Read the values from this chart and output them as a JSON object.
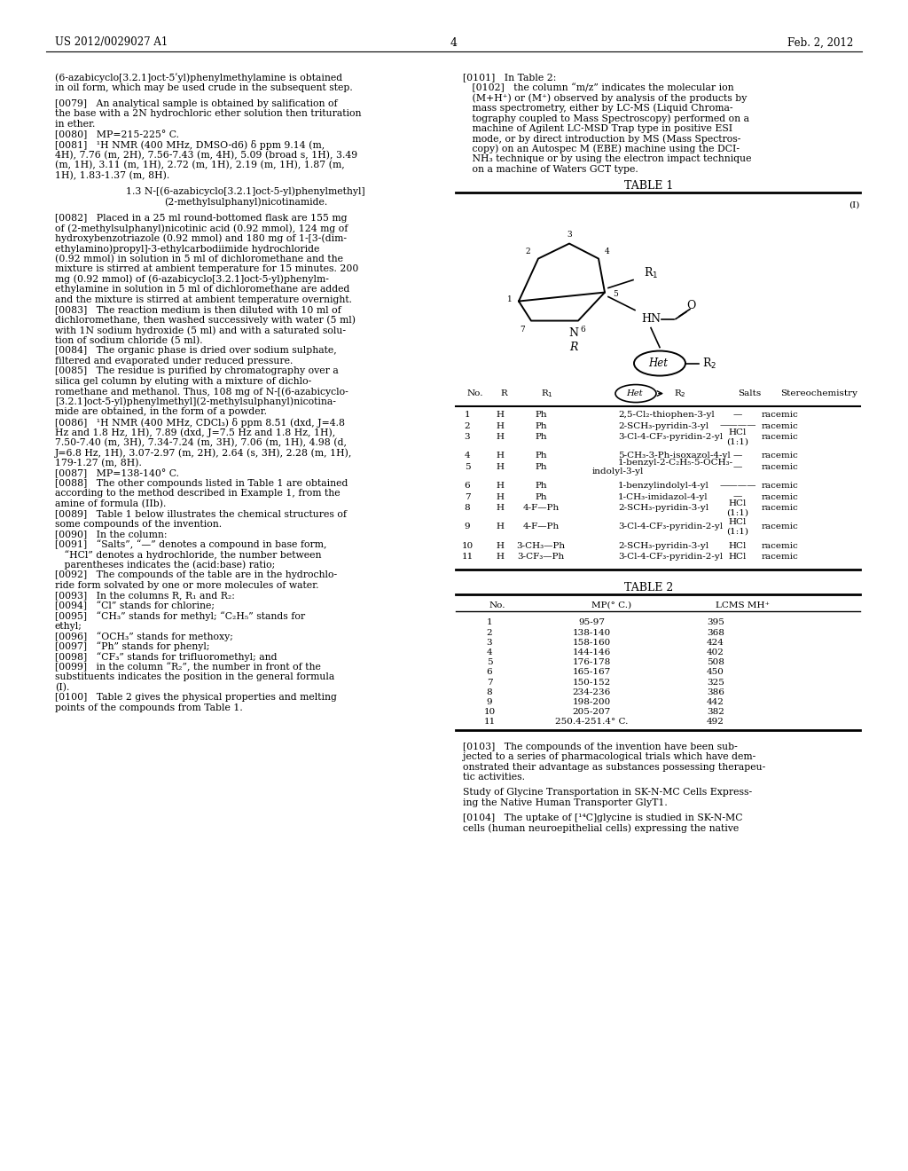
{
  "header_left": "US 2012/0029027 A1",
  "header_right": "Feb. 2, 2012",
  "page_number": "4",
  "left_texts": [
    "(6-azabicyclo[3.2.1]oct-5ʹyl)phenylmethylamine is obtained",
    "in oil form, which may be used crude in the subsequent step.",
    "",
    "[0079]   An analytical sample is obtained by salification of",
    "the base with a 2N hydrochloric ether solution then trituration",
    "in ether.",
    "[0080]   MP=215-225° C.",
    "[0081]   ¹H NMR (400 MHz, DMSO-d6) δ ppm 9.14 (m,",
    "4H), 7.76 (m, 2H), 7.56-7.43 (m, 4H), 5.09 (broad s, 1H), 3.49",
    "(m, 1H), 3.11 (m, 1H), 2.72 (m, 1H), 2.19 (m, 1H), 1.87 (m,",
    "1H), 1.83-1.37 (m, 8H).",
    "",
    "1.3 N-[(6-azabicyclo[3.2.1]oct-5-yl)phenylmethyl]",
    "(2-methylsulphanyl)nicotinamide.",
    "",
    "[0082]   Placed in a 25 ml round-bottomed flask are 155 mg",
    "of (2-methylsulphanyl)nicotinic acid (0.92 mmol), 124 mg of",
    "hydroxybenzotriazole (0.92 mmol) and 180 mg of 1-[3-(dim-",
    "ethylamino)propyl]-3-ethylcarbodiimide hydrochloride",
    "(0.92 mmol) in solution in 5 ml of dichloromethane and the",
    "mixture is stirred at ambient temperature for 15 minutes. 200",
    "mg (0.92 mmol) of (6-azabicyclo[3.2.1]oct-5-yl)phenylm-",
    "ethylamine in solution in 5 ml of dichloromethane are added",
    "and the mixture is stirred at ambient temperature overnight.",
    "[0083]   The reaction medium is then diluted with 10 ml of",
    "dichloromethane, then washed successively with water (5 ml)",
    "with 1N sodium hydroxide (5 ml) and with a saturated solu-",
    "tion of sodium chloride (5 ml).",
    "[0084]   The organic phase is dried over sodium sulphate,",
    "filtered and evaporated under reduced pressure.",
    "[0085]   The residue is purified by chromatography over a",
    "silica gel column by eluting with a mixture of dichlo-",
    "romethane and methanol. Thus, 108 mg of N-[(6-azabicyclo-",
    "[3.2.1]oct-5-yl)phenylmethyl](2-methylsulphanyl)nicotina-",
    "mide are obtained, in the form of a powder.",
    "[0086]   ¹H NMR (400 MHz, CDCl₃) δ ppm 8.51 (dxd, J=4.8",
    "Hz and 1.8 Hz, 1H), 7.89 (dxd, J=7.5 Hz and 1.8 Hz, 1H),",
    "7.50-7.40 (m, 3H), 7.34-7.24 (m, 3H), 7.06 (m, 1H), 4.98 (d,",
    "J=6.8 Hz, 1H), 3.07-2.97 (m, 2H), 2.64 (s, 3H), 2.28 (m, 1H),",
    "179-1.27 (m, 8H).",
    "[0087]   MP=138-140° C.",
    "[0088]   The other compounds listed in Table 1 are obtained",
    "according to the method described in Example 1, from the",
    "amine of formula (IIb).",
    "[0089]   Table 1 below illustrates the chemical structures of",
    "some compounds of the invention.",
    "[0090]   In the column:",
    "[0091]   “Salts”, “—” denotes a compound in base form,",
    "   “HCl” denotes a hydrochloride, the number between",
    "   parentheses indicates the (acid:base) ratio;",
    "[0092]   The compounds of the table are in the hydrochlo-",
    "ride form solvated by one or more molecules of water.",
    "[0093]   In the columns R, R₁ and R₂:",
    "[0094]   “Cl” stands for chlorine;",
    "[0095]   “CH₃” stands for methyl; “C₂H₅” stands for",
    "ethyl;",
    "[0096]   “OCH₃” stands for methoxy;",
    "[0097]   “Ph” stands for phenyl;",
    "[0098]   “CF₃” stands for trifluoromethyl; and",
    "[0099]   in the column “R₂”, the number in front of the",
    "substituents indicates the position in the general formula",
    "(I).",
    "[0100]   Table 2 gives the physical properties and melting",
    "points of the compounds from Table 1."
  ],
  "right_texts_top": [
    "[0101]   In Table 2:",
    "   [0102]   the column “m/z” indicates the molecular ion",
    "   (M+H⁺) or (M⁺) observed by analysis of the products by",
    "   mass spectrometry, either by LC-MS (Liquid Chroma-",
    "   tography coupled to Mass Spectroscopy) performed on a",
    "   machine of Agilent LC-MSD Trap type in positive ESI",
    "   mode, or by direct introduction by MS (Mass Spectros-",
    "   copy) on an Autospec M (EBE) machine using the DCI-",
    "   NH₃ technique or by using the electron impact technique",
    "   on a machine of Waters GCT type."
  ],
  "table1_rows": [
    [
      "1",
      "H",
      "Ph",
      "2,5-Cl₂-thiophen-3-yl",
      "—",
      "racemic"
    ],
    [
      "2",
      "H",
      "Ph",
      "2-SCH₃-pyridin-3-yl",
      "————",
      "racemic"
    ],
    [
      "3",
      "H",
      "Ph",
      "3-Cl-4-CF₃-pyridin-2-yl",
      "HCl\n(1:1)",
      "racemic"
    ],
    [
      "4",
      "H",
      "Ph",
      "5-CH₃-3-Ph-isoxazol-4-yl",
      "—",
      "racemic"
    ],
    [
      "5",
      "H",
      "Ph",
      "1-benzyl-2-C₂H₅-5-OCH₃-\nindolyl-3-yl",
      "—",
      "racemic"
    ],
    [
      "6",
      "H",
      "Ph",
      "1-benzylindolyl-4-yl",
      "————",
      "racemic"
    ],
    [
      "7",
      "H",
      "Ph",
      "1-CH₃-imidazol-4-yl",
      "—",
      "racemic"
    ],
    [
      "8",
      "H",
      "4-F—Ph",
      "2-SCH₃-pyridin-3-yl",
      "HCl\n(1:1)",
      "racemic"
    ],
    [
      "9",
      "H",
      "4-F—Ph",
      "3-Cl-4-CF₃-pyridin-2-yl",
      "HCl\n(1:1)",
      "racemic"
    ],
    [
      "10",
      "H",
      "3-CH₃—Ph",
      "2-SCH₃-pyridin-3-yl",
      "HCl",
      "racemic"
    ],
    [
      "11",
      "H",
      "3-CF₃—Ph",
      "3-Cl-4-CF₃-pyridin-2-yl",
      "HCl",
      "racemic"
    ]
  ],
  "table2_rows": [
    [
      "1",
      "95-97",
      "395"
    ],
    [
      "2",
      "138-140",
      "368"
    ],
    [
      "3",
      "158-160",
      "424"
    ],
    [
      "4",
      "144-146",
      "402"
    ],
    [
      "5",
      "176-178",
      "508"
    ],
    [
      "6",
      "165-167",
      "450"
    ],
    [
      "7",
      "150-152",
      "325"
    ],
    [
      "8",
      "234-236",
      "386"
    ],
    [
      "9",
      "198-200",
      "442"
    ],
    [
      "10",
      "205-207",
      "382"
    ],
    [
      "11",
      "250.4-251.4° C.",
      "492"
    ]
  ],
  "right_texts_bottom": [
    "[0103]   The compounds of the invention have been sub-",
    "jected to a series of pharmacological trials which have dem-",
    "onstrated their advantage as substances possessing therapeu-",
    "tic activities.",
    "",
    "Study of Glycine Transportation in SK-N-MC Cells Express-",
    "ing the Native Human Transporter GlyT1.",
    "",
    "[0104]   The uptake of [¹⁴C]glycine is studied in SK-N-MC",
    "cells (human neuroepithelial cells) expressing the native"
  ]
}
